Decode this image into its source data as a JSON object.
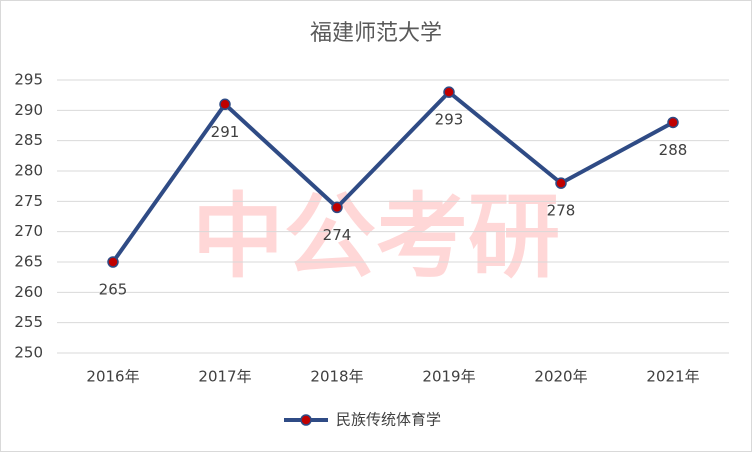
{
  "chart_data": {
    "type": "line",
    "title": "福建师范大学",
    "watermark": "中公考研",
    "categories": [
      "2016年",
      "2017年",
      "2018年",
      "2019年",
      "2020年",
      "2021年"
    ],
    "series": [
      {
        "name": "民族传统体育学",
        "color": "#2f4b85",
        "marker_color": "#c00000",
        "values": [
          265,
          291,
          274,
          293,
          278,
          288
        ]
      }
    ],
    "ylim": [
      250,
      295
    ],
    "yticks": [
      250,
      255,
      260,
      265,
      270,
      275,
      280,
      285,
      290,
      295
    ],
    "grid": true,
    "legend": "bottom"
  }
}
